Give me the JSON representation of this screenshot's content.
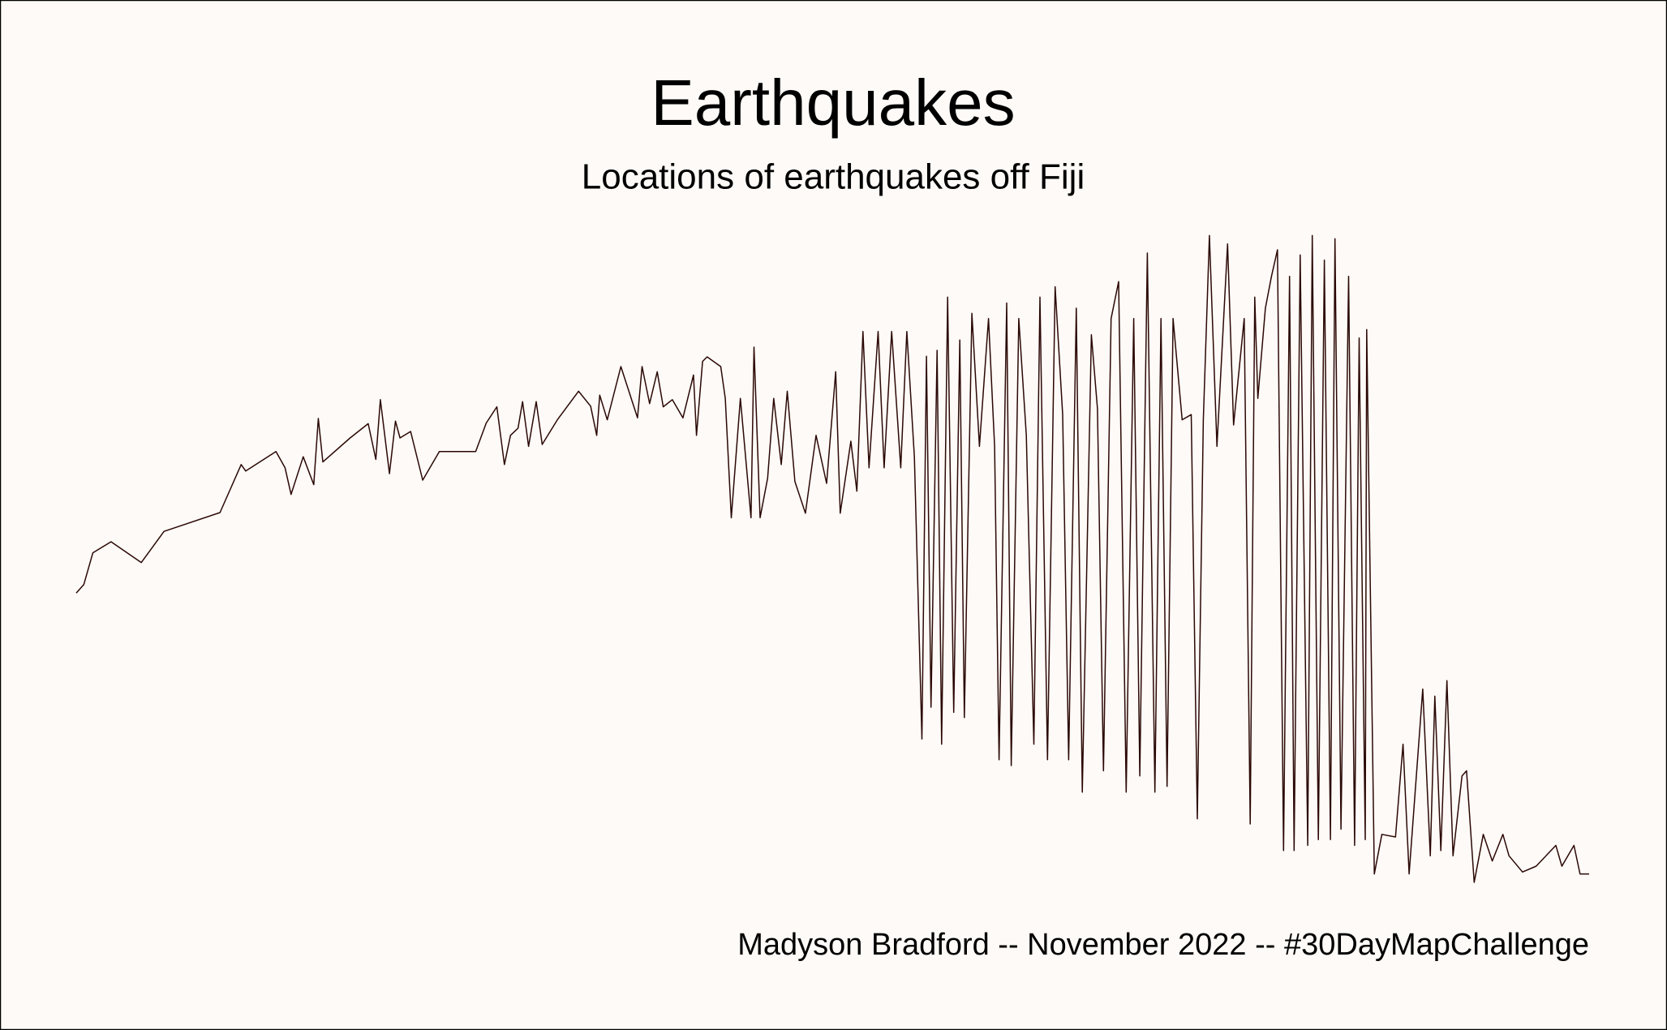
{
  "chart_data": {
    "type": "line",
    "title": "Earthquakes",
    "subtitle": "Locations of earthquakes off Fiji",
    "caption": "Madyson Bradford -- November 2022 -- #30DayMapChallenge",
    "color": "#2b0805",
    "xlim": [
      0,
      100
    ],
    "ylim": [
      0,
      100
    ],
    "x": [
      0,
      0.5,
      1.1,
      2.3,
      4.3,
      5.8,
      9.5,
      10.9,
      11.2,
      13.2,
      13.8,
      14.2,
      15.0,
      15.7,
      16.0,
      16.3,
      18.1,
      19.3,
      19.8,
      20.1,
      20.7,
      21.1,
      21.4,
      22.1,
      22.9,
      24.0,
      26.4,
      27.1,
      27.8,
      28.3,
      28.7,
      29.2,
      29.5,
      29.9,
      30.4,
      30.8,
      31.8,
      33.2,
      34.0,
      34.4,
      34.6,
      35.1,
      36.0,
      37.1,
      37.4,
      37.9,
      38.4,
      38.8,
      39.4,
      40.1,
      40.8,
      41.0,
      41.4,
      41.7,
      42.6,
      42.9,
      43.3,
      43.9,
      44.6,
      44.8,
      45.2,
      45.7,
      46.1,
      46.6,
      47.0,
      47.5,
      48.2,
      48.9,
      49.6,
      50.2,
      50.5,
      51.2,
      51.6,
      52.0,
      52.4,
      53.0,
      53.4,
      53.9,
      54.5,
      54.9,
      55.4,
      55.9,
      56.2,
      56.5,
      56.9,
      57.2,
      57.6,
      58.0,
      58.4,
      58.7,
      59.2,
      59.7,
      60.3,
      60.7,
      61.0,
      61.5,
      61.8,
      62.3,
      62.8,
      63.3,
      63.7,
      64.2,
      64.7,
      65.2,
      65.6,
      66.1,
      66.5,
      67.1,
      67.5,
      67.9,
      68.4,
      68.9,
      69.4,
      69.9,
      70.3,
      70.8,
      71.3,
      71.7,
      72.1,
      72.5,
      73.1,
      73.7,
      74.1,
      74.5,
      74.9,
      75.4,
      76.1,
      76.5,
      77.2,
      77.6,
      77.9,
      78.1,
      78.6,
      79.0,
      79.4,
      79.8,
      80.2,
      80.5,
      80.9,
      81.4,
      81.7,
      82.1,
      82.5,
      82.9,
      83.2,
      83.6,
      84.1,
      84.5,
      84.8,
      85.2,
      85.3,
      85.8,
      86.3,
      87.2,
      87.7,
      88.1,
      89.0,
      89.5,
      89.8,
      90.2,
      90.6,
      91.0,
      91.6,
      91.9,
      92.4,
      93.0,
      93.6,
      94.3,
      94.7,
      95.6,
      96.5,
      97.8,
      98.2,
      99.0,
      99.4,
      100
    ],
    "values": [
      44.6,
      45.9,
      50.8,
      52.5,
      49.3,
      54.1,
      57.0,
      64.4,
      63.4,
      66.4,
      63.9,
      59.8,
      65.6,
      61.3,
      71.5,
      64.8,
      68.5,
      70.7,
      65.2,
      74.4,
      63.0,
      71.1,
      68.5,
      69.5,
      62.0,
      66.4,
      66.4,
      70.8,
      73.3,
      64.4,
      68.9,
      70.0,
      74.1,
      67.2,
      74.1,
      67.5,
      71.3,
      75.7,
      73.4,
      68.9,
      75.1,
      71.3,
      79.5,
      71.6,
      79.5,
      73.8,
      78.7,
      73.3,
      74.4,
      71.6,
      78.2,
      68.9,
      80.3,
      81.0,
      79.5,
      74.6,
      56.2,
      74.6,
      56.2,
      82.5,
      56.2,
      62.3,
      74.6,
      64.4,
      75.7,
      61.8,
      56.9,
      68.9,
      61.5,
      78.7,
      56.9,
      68.0,
      60.3,
      84.9,
      63.9,
      84.9,
      63.9,
      84.9,
      63.9,
      84.9,
      65.6,
      22.1,
      81.1,
      27.0,
      82.0,
      21.3,
      90.2,
      26.2,
      83.6,
      25.4,
      87.7,
      67.2,
      86.9,
      67.2,
      18.9,
      89.3,
      18.0,
      86.9,
      68.9,
      21.3,
      90.2,
      18.9,
      91.8,
      72.1,
      18.9,
      88.5,
      13.9,
      84.4,
      73.0,
      17.2,
      86.9,
      92.6,
      13.9,
      86.9,
      16.4,
      97.0,
      13.9,
      86.9,
      14.8,
      86.9,
      71.3,
      72.1,
      9.8,
      71.3,
      99.7,
      67.2,
      98.4,
      70.5,
      86.9,
      9.0,
      90.2,
      74.6,
      88.5,
      93.4,
      97.5,
      4.9,
      93.4,
      4.9,
      96.7,
      5.7,
      99.7,
      6.6,
      95.9,
      6.6,
      99.2,
      8.2,
      93.4,
      5.7,
      83.9,
      6.6,
      85.2,
      1.3,
      7.4,
      7.0,
      21.3,
      1.3,
      29.8,
      4.1,
      28.7,
      4.9,
      31.1,
      4.1,
      16.4,
      17.2,
      0,
      7.4,
      3.3,
      7.4,
      4.1,
      1.6,
      2.5,
      5.7,
      2.5,
      5.7,
      1.3,
      1.3
    ]
  }
}
